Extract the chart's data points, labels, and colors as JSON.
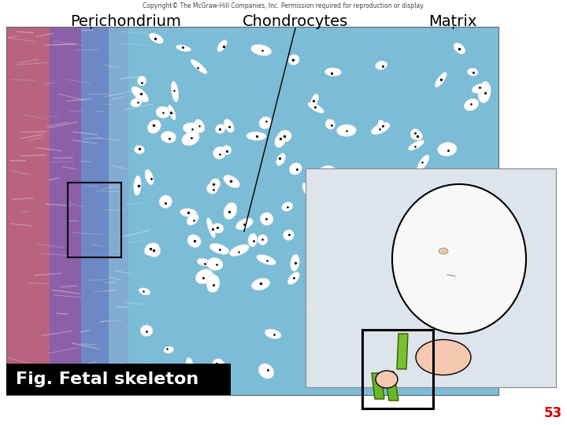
{
  "background_color": "#ffffff",
  "title_copyright": "Copyright© The McGraw-Hill Companies, Inc. Permission required for reproduction or display.",
  "label_perichondrium": "Perichondrium",
  "label_chondrocytes": "Chondrocytes",
  "label_matrix": "Matrix",
  "caption_text": "Fig. Fetal skeleton",
  "page_number": "53",
  "caption_bg": "#000000",
  "caption_fg": "#ffffff",
  "page_number_color": "#cc0000",
  "label_color": "#000000",
  "label_fontsize": 14,
  "copyright_fontsize": 5.5,
  "caption_fontsize": 16,
  "page_fontsize": 12
}
